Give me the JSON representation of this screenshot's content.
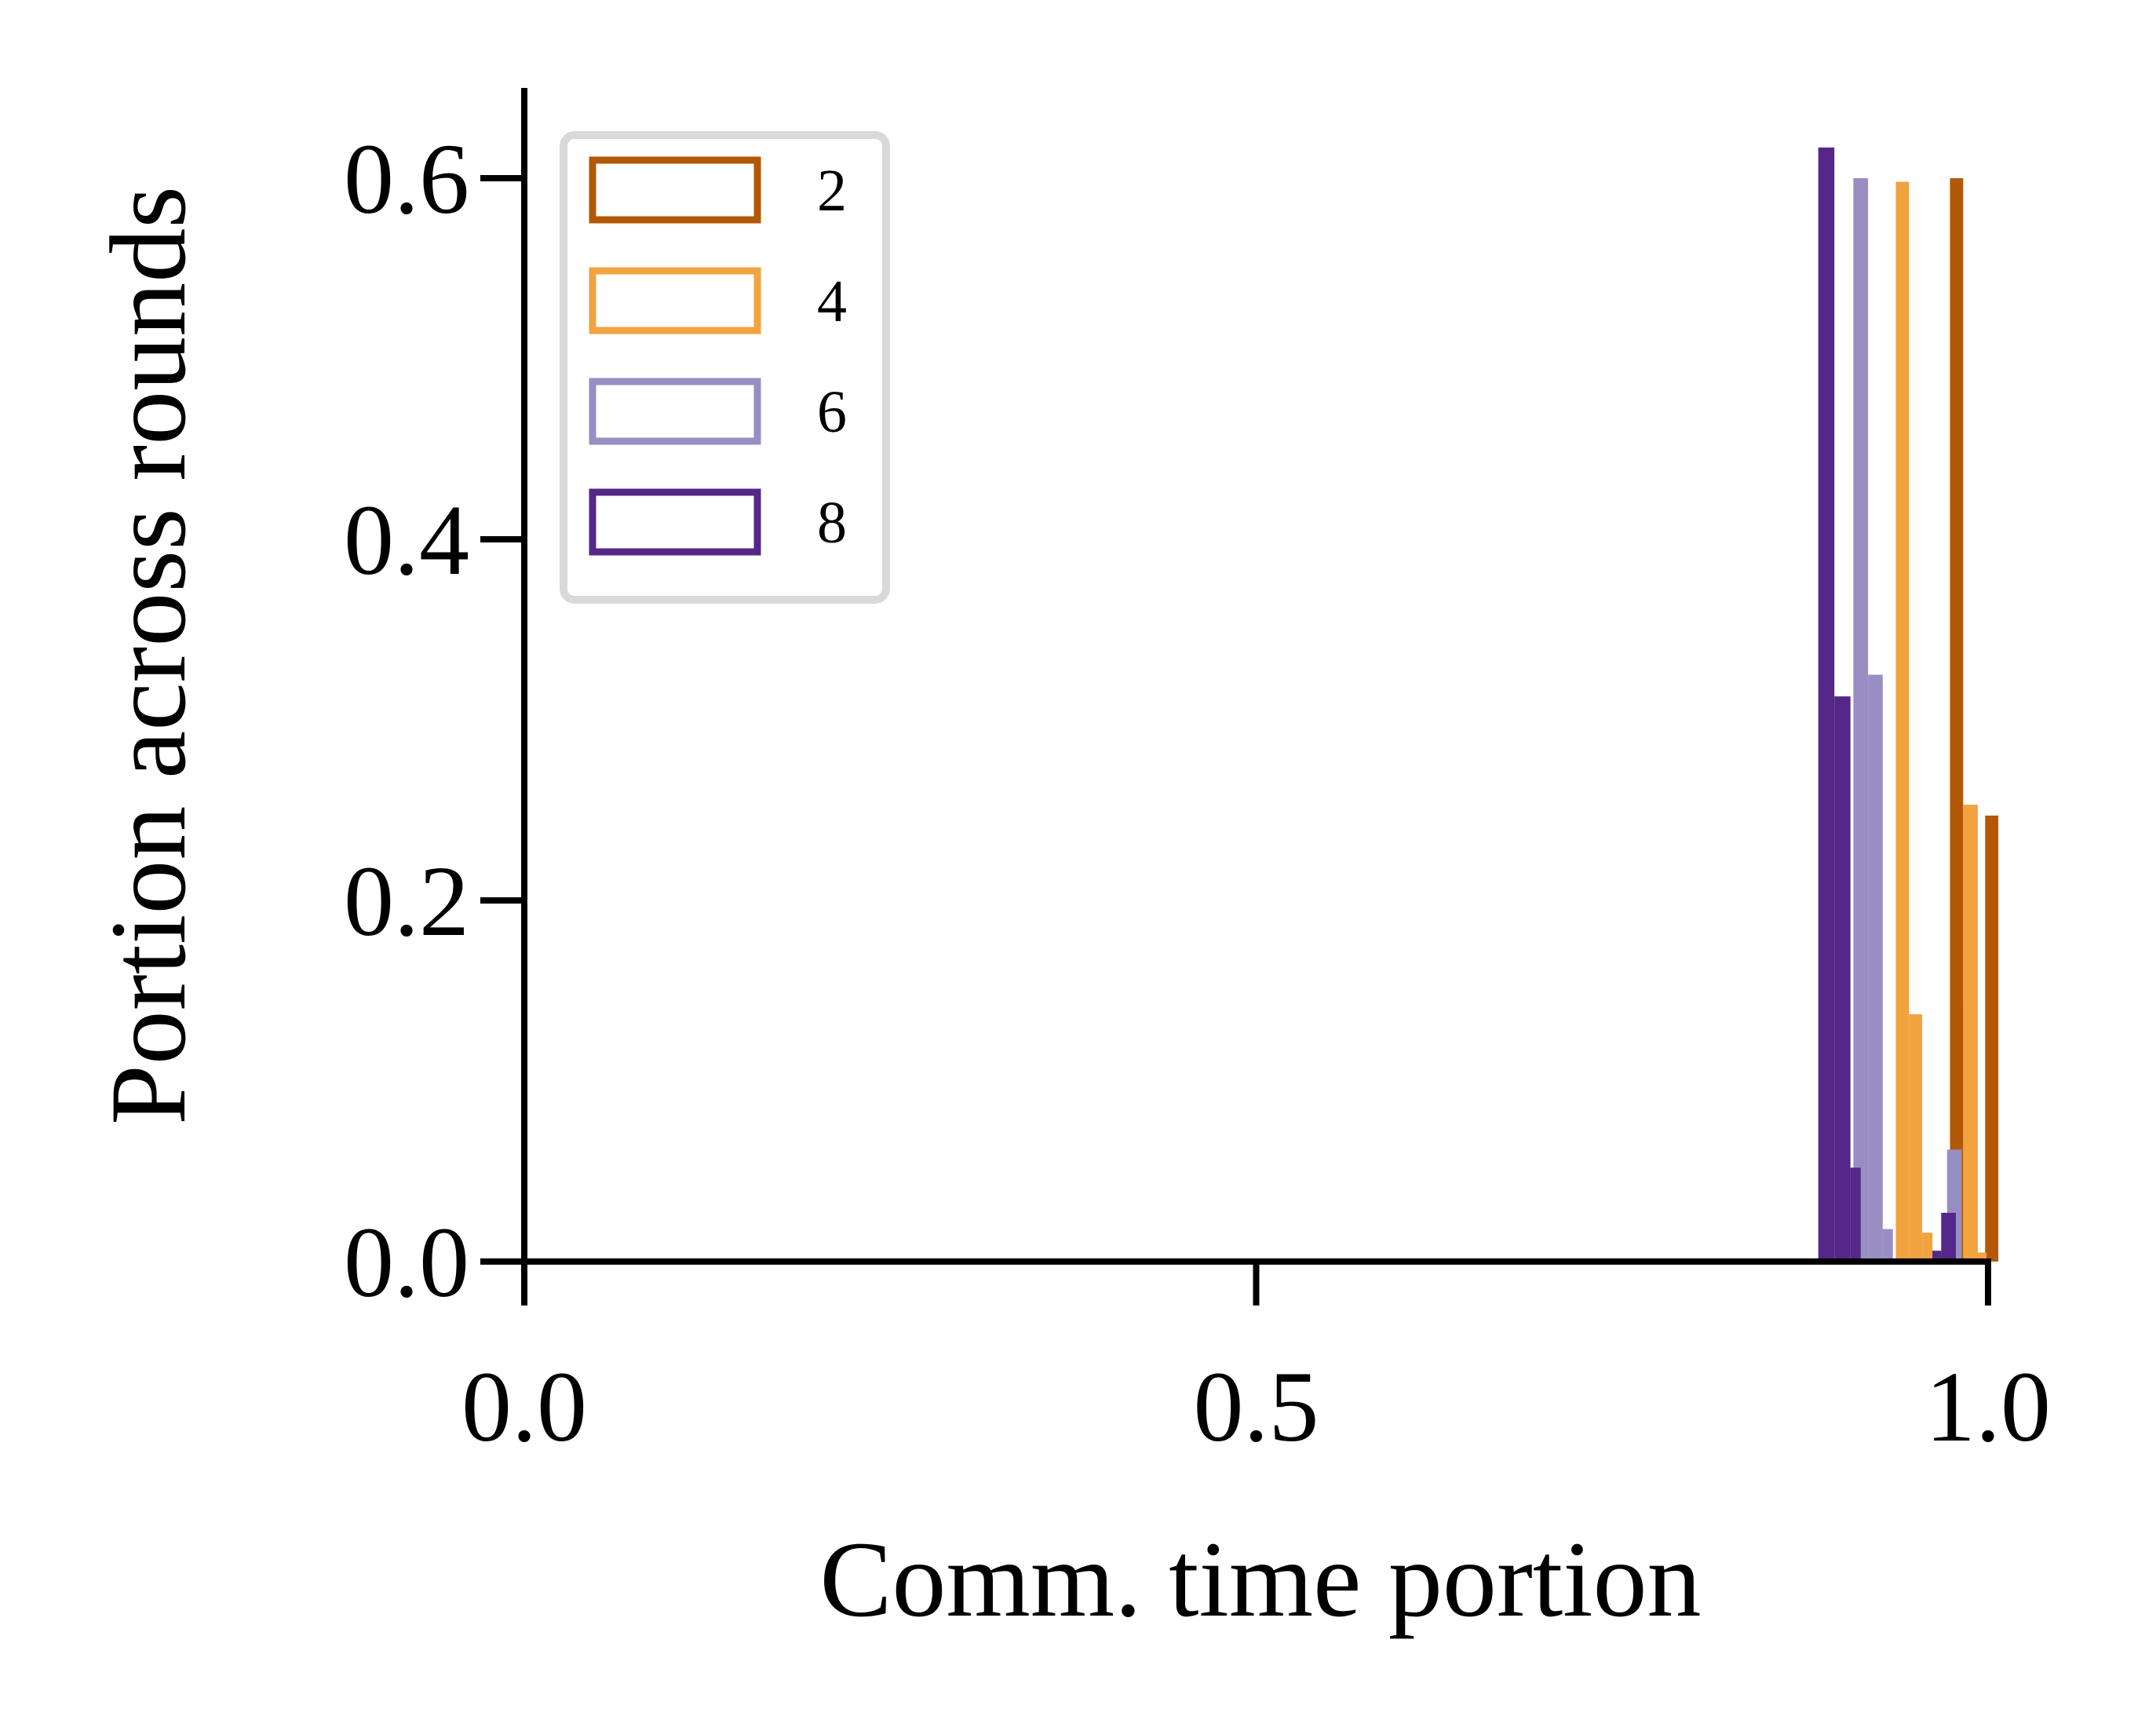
{
  "chart_data": {
    "type": "bar",
    "xlabel": "Comm. time portion",
    "ylabel": "Portion across rounds",
    "xlim": [
      0.0,
      1.0
    ],
    "ylim": [
      0.0,
      0.65
    ],
    "x_ticks": [
      "0.0",
      "0.5",
      "1.0"
    ],
    "y_ticks": [
      "0.0",
      "0.2",
      "0.4",
      "0.6"
    ],
    "legend_placement": "top-left",
    "grid": false,
    "series": [
      {
        "name": "2",
        "color": "#b35806",
        "bins": [
          {
            "x0": 0.965,
            "x1": 0.974,
            "value": 0.003
          },
          {
            "x0": 0.974,
            "x1": 0.983,
            "value": 0.6
          },
          {
            "x0": 0.983,
            "x1": 0.989,
            "value": 0.143
          },
          {
            "x0": 0.989,
            "x1": 0.998,
            "value": 0.004
          },
          {
            "x0": 0.998,
            "x1": 1.007,
            "value": 0.247
          }
        ]
      },
      {
        "name": "4",
        "color": "#f1a340",
        "bins": [
          {
            "x0": 0.937,
            "x1": 0.946,
            "value": 0.598
          },
          {
            "x0": 0.946,
            "x1": 0.955,
            "value": 0.137
          },
          {
            "x0": 0.955,
            "x1": 0.962,
            "value": 0.016
          },
          {
            "x0": 0.983,
            "x1": 0.993,
            "value": 0.253
          },
          {
            "x0": 0.993,
            "x1": 0.999,
            "value": 0.005
          }
        ]
      },
      {
        "name": "6",
        "color": "#998ec3",
        "bins": [
          {
            "x0": 0.908,
            "x1": 0.918,
            "value": 0.6
          },
          {
            "x0": 0.918,
            "x1": 0.928,
            "value": 0.325
          },
          {
            "x0": 0.928,
            "x1": 0.935,
            "value": 0.018
          },
          {
            "x0": 0.972,
            "x1": 0.982,
            "value": 0.062
          }
        ]
      },
      {
        "name": "8",
        "color": "#542788",
        "bins": [
          {
            "x0": 0.884,
            "x1": 0.895,
            "value": 0.617
          },
          {
            "x0": 0.895,
            "x1": 0.906,
            "value": 0.313
          },
          {
            "x0": 0.906,
            "x1": 0.913,
            "value": 0.052
          },
          {
            "x0": 0.962,
            "x1": 0.968,
            "value": 0.006
          },
          {
            "x0": 0.968,
            "x1": 0.978,
            "value": 0.027
          }
        ]
      }
    ]
  }
}
